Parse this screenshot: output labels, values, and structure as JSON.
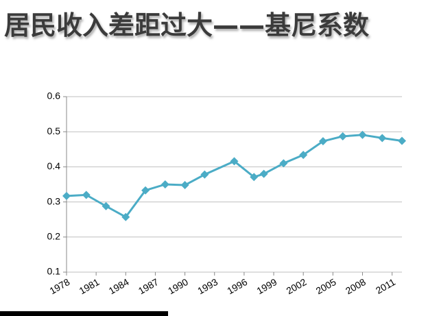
{
  "chart_data": {
    "type": "line",
    "title": "居民收入差距过大——基尼系数",
    "x": [
      1978,
      1980,
      1982,
      1984,
      1986,
      1988,
      1990,
      1992,
      1995,
      1997,
      1998,
      2000,
      2002,
      2004,
      2006,
      2008,
      2010,
      2012
    ],
    "values": [
      0.317,
      0.32,
      0.288,
      0.257,
      0.333,
      0.35,
      0.348,
      0.378,
      0.416,
      0.371,
      0.38,
      0.41,
      0.434,
      0.473,
      0.487,
      0.491,
      0.482,
      0.474
    ],
    "color": "#4bacc6",
    "xlim": [
      1978,
      2012
    ],
    "xticks": [
      1978,
      1981,
      1984,
      1987,
      1990,
      1993,
      1996,
      1999,
      2002,
      2005,
      2008,
      2011
    ],
    "ylim": [
      0.1,
      0.6
    ],
    "yticks": [
      0.1,
      0.2,
      0.3,
      0.4,
      0.5,
      0.6
    ],
    "grid": true
  }
}
